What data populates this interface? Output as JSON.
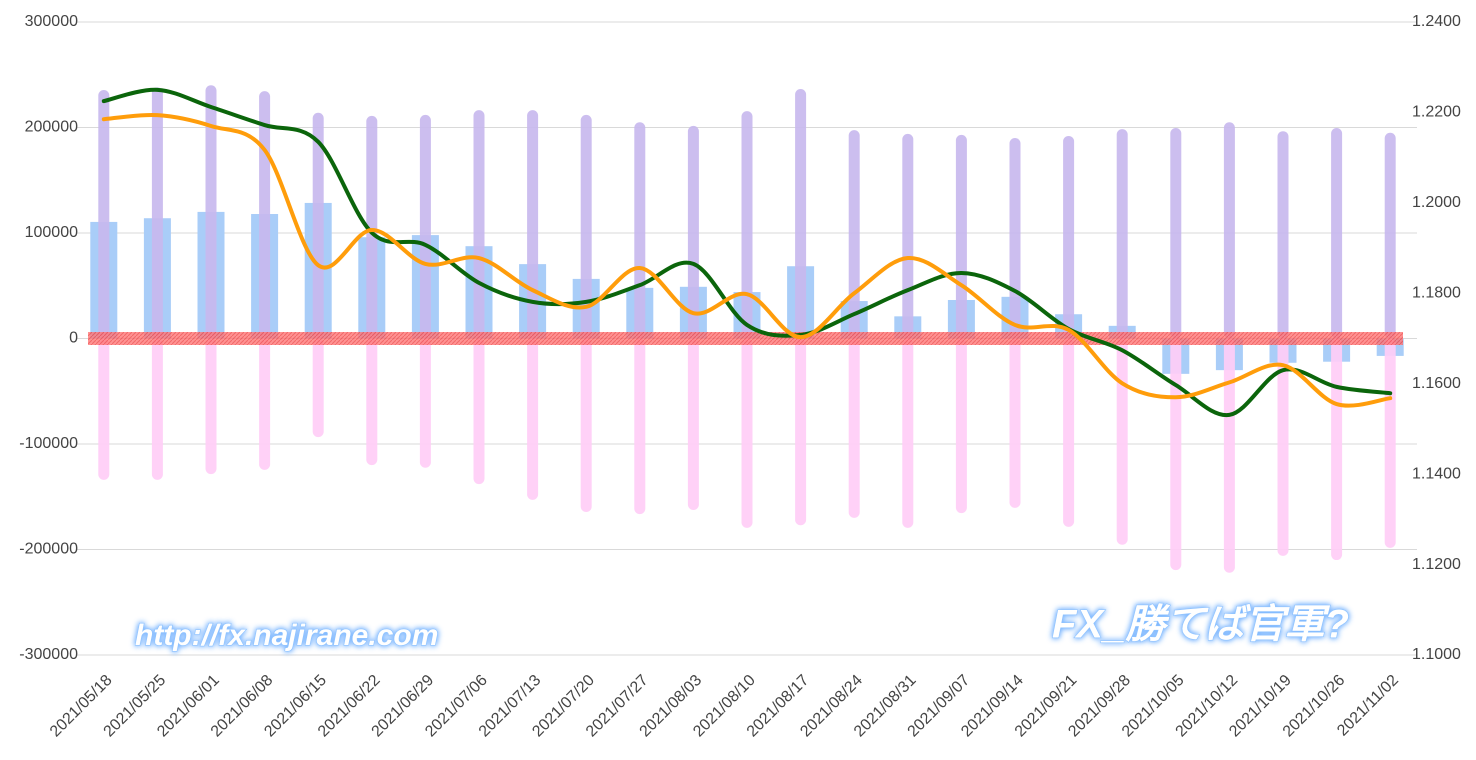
{
  "chart_data": {
    "type": "combo",
    "categories": [
      "2021/05/18",
      "2021/05/25",
      "2021/06/01",
      "2021/06/08",
      "2021/06/15",
      "2021/06/22",
      "2021/06/29",
      "2021/07/06",
      "2021/07/13",
      "2021/07/20",
      "2021/07/27",
      "2021/08/03",
      "2021/08/10",
      "2021/08/17",
      "2021/08/24",
      "2021/08/31",
      "2021/09/07",
      "2021/09/14",
      "2021/09/21",
      "2021/09/28",
      "2021/10/05",
      "2021/10/12",
      "2021/10/19",
      "2021/10/26",
      "2021/11/02"
    ],
    "ylim": [
      -300000,
      300000
    ],
    "yticks": [
      -300000,
      -200000,
      -100000,
      0,
      100000,
      200000,
      300000
    ],
    "y2lim": [
      1.1,
      1.24
    ],
    "y2ticks": [
      {
        "value": 1.1,
        "label": "1.1000"
      },
      {
        "value": 1.12,
        "label": "1.1200"
      },
      {
        "value": 1.14,
        "label": "1.1400"
      },
      {
        "value": 1.16,
        "label": "1.1600"
      },
      {
        "value": 1.18,
        "label": "1.1800"
      },
      {
        "value": 1.2,
        "label": "1.2000"
      },
      {
        "value": 1.22,
        "label": "1.2200"
      },
      {
        "value": 1.24,
        "label": "1.2400"
      }
    ],
    "grid": true,
    "annotations": [
      "http://fx.najirane.com",
      "FX_勝てば官軍?"
    ],
    "series": [
      {
        "type": "bar",
        "width": "wide",
        "color": "#a9cdf8",
        "values": [
          110500,
          114000,
          120000,
          118000,
          128500,
          96000,
          98000,
          87500,
          70500,
          56500,
          48000,
          49000,
          44000,
          68500,
          35500,
          21000,
          36500,
          39500,
          23000,
          12000,
          -33500,
          -30000,
          -23000,
          -22000,
          -16500
        ]
      },
      {
        "type": "bar",
        "width": "narrow",
        "color": "#c8b9ee",
        "values": [
          235500,
          238000,
          240000,
          234500,
          214000,
          211000,
          212000,
          216500,
          216500,
          212000,
          205000,
          201500,
          215500,
          236500,
          197500,
          194000,
          193000,
          190000,
          192000,
          198500,
          199500,
          205000,
          196500,
          199500,
          195000
        ]
      },
      {
        "type": "bar",
        "width": "narrow",
        "color": "#ffcdf6",
        "values": [
          -134000,
          -134000,
          -128500,
          -124500,
          -93500,
          -120000,
          -122500,
          -138000,
          -153000,
          -164500,
          -166500,
          -162500,
          -179500,
          -177000,
          -170000,
          -179500,
          -165500,
          -160500,
          -178500,
          -195500,
          -219500,
          -222000,
          -206000,
          -210000,
          -198500
        ]
      },
      {
        "type": "line",
        "axis": "y2",
        "color": "#0b650b",
        "values": [
          1.2225,
          1.225,
          1.2212,
          1.2172,
          1.2135,
          1.1934,
          1.1907,
          1.1823,
          1.1781,
          1.1781,
          1.1818,
          1.1865,
          1.173,
          1.1708,
          1.1754,
          1.1807,
          1.1845,
          1.1805,
          1.1721,
          1.1674,
          1.1597,
          1.1531,
          1.163,
          1.1593,
          1.1579
        ]
      },
      {
        "type": "line",
        "axis": "y2",
        "color": "#ff9d0b",
        "values": [
          1.2185,
          1.2194,
          1.217,
          1.2117,
          1.1862,
          1.194,
          1.1865,
          1.1878,
          1.1807,
          1.177,
          1.1856,
          1.1756,
          1.1798,
          1.1703,
          1.18,
          1.1878,
          1.1818,
          1.173,
          1.1719,
          1.1601,
          1.157,
          1.1603,
          1.1641,
          1.1555,
          1.1568
        ]
      }
    ]
  }
}
